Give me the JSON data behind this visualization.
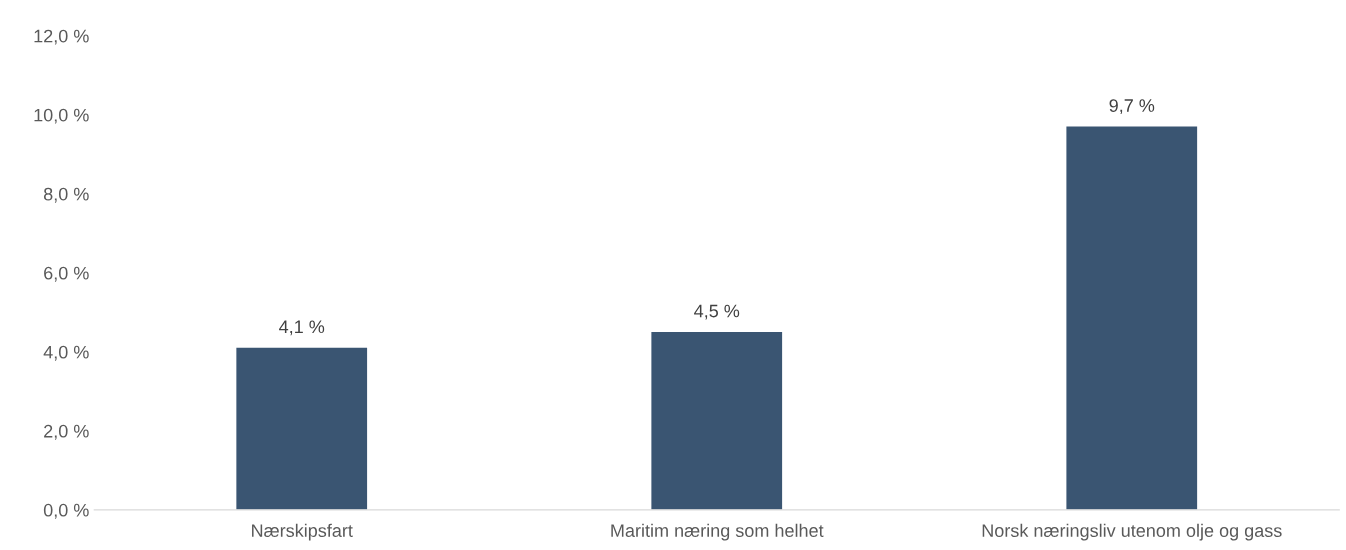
{
  "chart_data": {
    "type": "bar",
    "categories": [
      "Nærskipsfart",
      "Maritim næring som helhet",
      "Norsk næringsliv utenom olje og gass"
    ],
    "values": [
      4.1,
      4.5,
      9.7
    ],
    "value_labels": [
      "4,1 %",
      "4,5 %",
      "9,7 %"
    ],
    "color": "#3a5572",
    "ylim": [
      0,
      12
    ],
    "yticks": [
      {
        "value": 0,
        "label": "0,0 %"
      },
      {
        "value": 2,
        "label": "2,0 %"
      },
      {
        "value": 4,
        "label": "4,0 %"
      },
      {
        "value": 6,
        "label": "6,0 %"
      },
      {
        "value": 8,
        "label": "8,0 %"
      },
      {
        "value": 10,
        "label": "10,0 %"
      },
      {
        "value": 12,
        "label": "12,0 %"
      }
    ],
    "grid": false,
    "legend": false
  }
}
